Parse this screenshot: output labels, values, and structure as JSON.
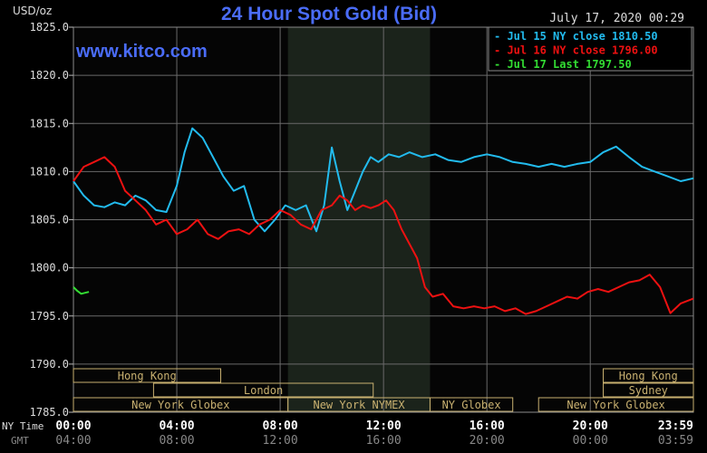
{
  "chart_data": {
    "type": "line",
    "title": "24 Hour Spot Gold (Bid)",
    "watermark": "www.kitco.com",
    "timestamp": "July 17, 2020 00:29",
    "ylabel": "USD/oz",
    "ylim": [
      1785,
      1825
    ],
    "y_ticks": [
      "1825.0",
      "1820.0",
      "1815.0",
      "1810.0",
      "1805.0",
      "1800.0",
      "1795.0",
      "1790.0",
      "1785.0"
    ],
    "x_axis": {
      "row1_label": "NY Time",
      "row2_label": "GMT",
      "row1_ticks": [
        "00:00",
        "04:00",
        "08:00",
        "12:00",
        "16:00",
        "20:00",
        "23:59"
      ],
      "row2_ticks": [
        "04:00",
        "08:00",
        "12:00",
        "16:00",
        "20:00",
        "00:00",
        "03:59"
      ]
    },
    "sessions": [
      {
        "label": "Hong Kong",
        "start": 0.0,
        "end": 5.7
      },
      {
        "label": "London",
        "start": 3.1,
        "end": 11.6
      },
      {
        "label": "New York Globex",
        "start": 0.0,
        "end": 8.3
      },
      {
        "label": "New York NYMEX",
        "start": 8.3,
        "end": 13.8
      },
      {
        "label": "NY Globex",
        "start": 13.8,
        "end": 17.0
      },
      {
        "label": "Sydney",
        "start": 20.5,
        "end": 23.99
      },
      {
        "label": "Hong Kong",
        "start": 20.5,
        "end": 23.99
      },
      {
        "label": "New York Globex",
        "start": 18.0,
        "end": 23.99
      }
    ],
    "shaded_period": [
      8.3,
      13.8
    ],
    "series": [
      {
        "name": "Jul 15 NY close 1810.50",
        "color": "#22bbee",
        "x": [
          0,
          0.4,
          0.8,
          1.2,
          1.6,
          2.0,
          2.4,
          2.8,
          3.2,
          3.6,
          4.0,
          4.3,
          4.6,
          5.0,
          5.4,
          5.8,
          6.2,
          6.6,
          7.0,
          7.4,
          7.8,
          8.2,
          8.6,
          9.0,
          9.4,
          9.7,
          10.0,
          10.3,
          10.6,
          10.9,
          11.2,
          11.5,
          11.8,
          12.2,
          12.6,
          13.0,
          13.5,
          14.0,
          14.5,
          15.0,
          15.5,
          16.0,
          16.5,
          17.0,
          17.5,
          18.0,
          18.5,
          19.0,
          19.5,
          20.0,
          20.5,
          21.0,
          21.5,
          22.0,
          22.5,
          23.0,
          23.5,
          23.99
        ],
        "y": [
          1809.0,
          1807.5,
          1806.5,
          1806.3,
          1806.8,
          1806.5,
          1807.5,
          1807.0,
          1806.0,
          1805.8,
          1808.5,
          1812.0,
          1814.5,
          1813.5,
          1811.5,
          1809.5,
          1808.0,
          1808.5,
          1805.0,
          1803.8,
          1805.0,
          1806.5,
          1806.0,
          1806.5,
          1803.8,
          1806.5,
          1812.5,
          1809.0,
          1806.0,
          1808.0,
          1810.0,
          1811.5,
          1811.0,
          1811.8,
          1811.5,
          1812.0,
          1811.5,
          1811.8,
          1811.2,
          1811.0,
          1811.5,
          1811.8,
          1811.5,
          1811.0,
          1810.8,
          1810.5,
          1810.8,
          1810.5,
          1810.8,
          1811.0,
          1812.0,
          1812.6,
          1811.5,
          1810.5,
          1810.0,
          1809.5,
          1809.0,
          1809.3
        ]
      },
      {
        "name": "Jul 16 NY close 1796.00",
        "color": "#ee1111",
        "x": [
          0,
          0.4,
          0.8,
          1.2,
          1.6,
          2.0,
          2.4,
          2.8,
          3.2,
          3.6,
          4.0,
          4.4,
          4.8,
          5.2,
          5.6,
          6.0,
          6.4,
          6.8,
          7.2,
          7.6,
          8.0,
          8.4,
          8.8,
          9.2,
          9.6,
          10.0,
          10.3,
          10.6,
          10.9,
          11.2,
          11.5,
          11.8,
          12.1,
          12.4,
          12.7,
          13.0,
          13.3,
          13.6,
          13.9,
          14.3,
          14.7,
          15.1,
          15.5,
          15.9,
          16.3,
          16.7,
          17.1,
          17.5,
          17.9,
          18.3,
          18.7,
          19.1,
          19.5,
          19.9,
          20.3,
          20.7,
          21.1,
          21.5,
          21.9,
          22.3,
          22.7,
          23.1,
          23.5,
          23.99
        ],
        "y": [
          1809.0,
          1810.5,
          1811.0,
          1811.5,
          1810.5,
          1808.0,
          1807.0,
          1806.0,
          1804.5,
          1805.0,
          1803.5,
          1804.0,
          1805.0,
          1803.5,
          1803.0,
          1803.8,
          1804.0,
          1803.5,
          1804.5,
          1805.0,
          1806.0,
          1805.5,
          1804.5,
          1804.0,
          1806.0,
          1806.5,
          1807.5,
          1807.0,
          1806.0,
          1806.5,
          1806.2,
          1806.5,
          1807.0,
          1806.0,
          1804.0,
          1802.5,
          1801.0,
          1798.0,
          1797.0,
          1797.3,
          1796.0,
          1795.8,
          1796.0,
          1795.8,
          1796.0,
          1795.5,
          1795.8,
          1795.2,
          1795.5,
          1796.0,
          1796.5,
          1797.0,
          1796.8,
          1797.5,
          1797.8,
          1797.5,
          1798.0,
          1798.5,
          1798.7,
          1799.3,
          1798.0,
          1795.3,
          1796.3,
          1796.8
        ]
      },
      {
        "name": "Jul 17 Last 1797.50",
        "color": "#33dd33",
        "x": [
          0.0,
          0.15,
          0.3,
          0.45,
          0.6
        ],
        "y": [
          1798.0,
          1797.6,
          1797.3,
          1797.4,
          1797.5
        ]
      }
    ]
  }
}
